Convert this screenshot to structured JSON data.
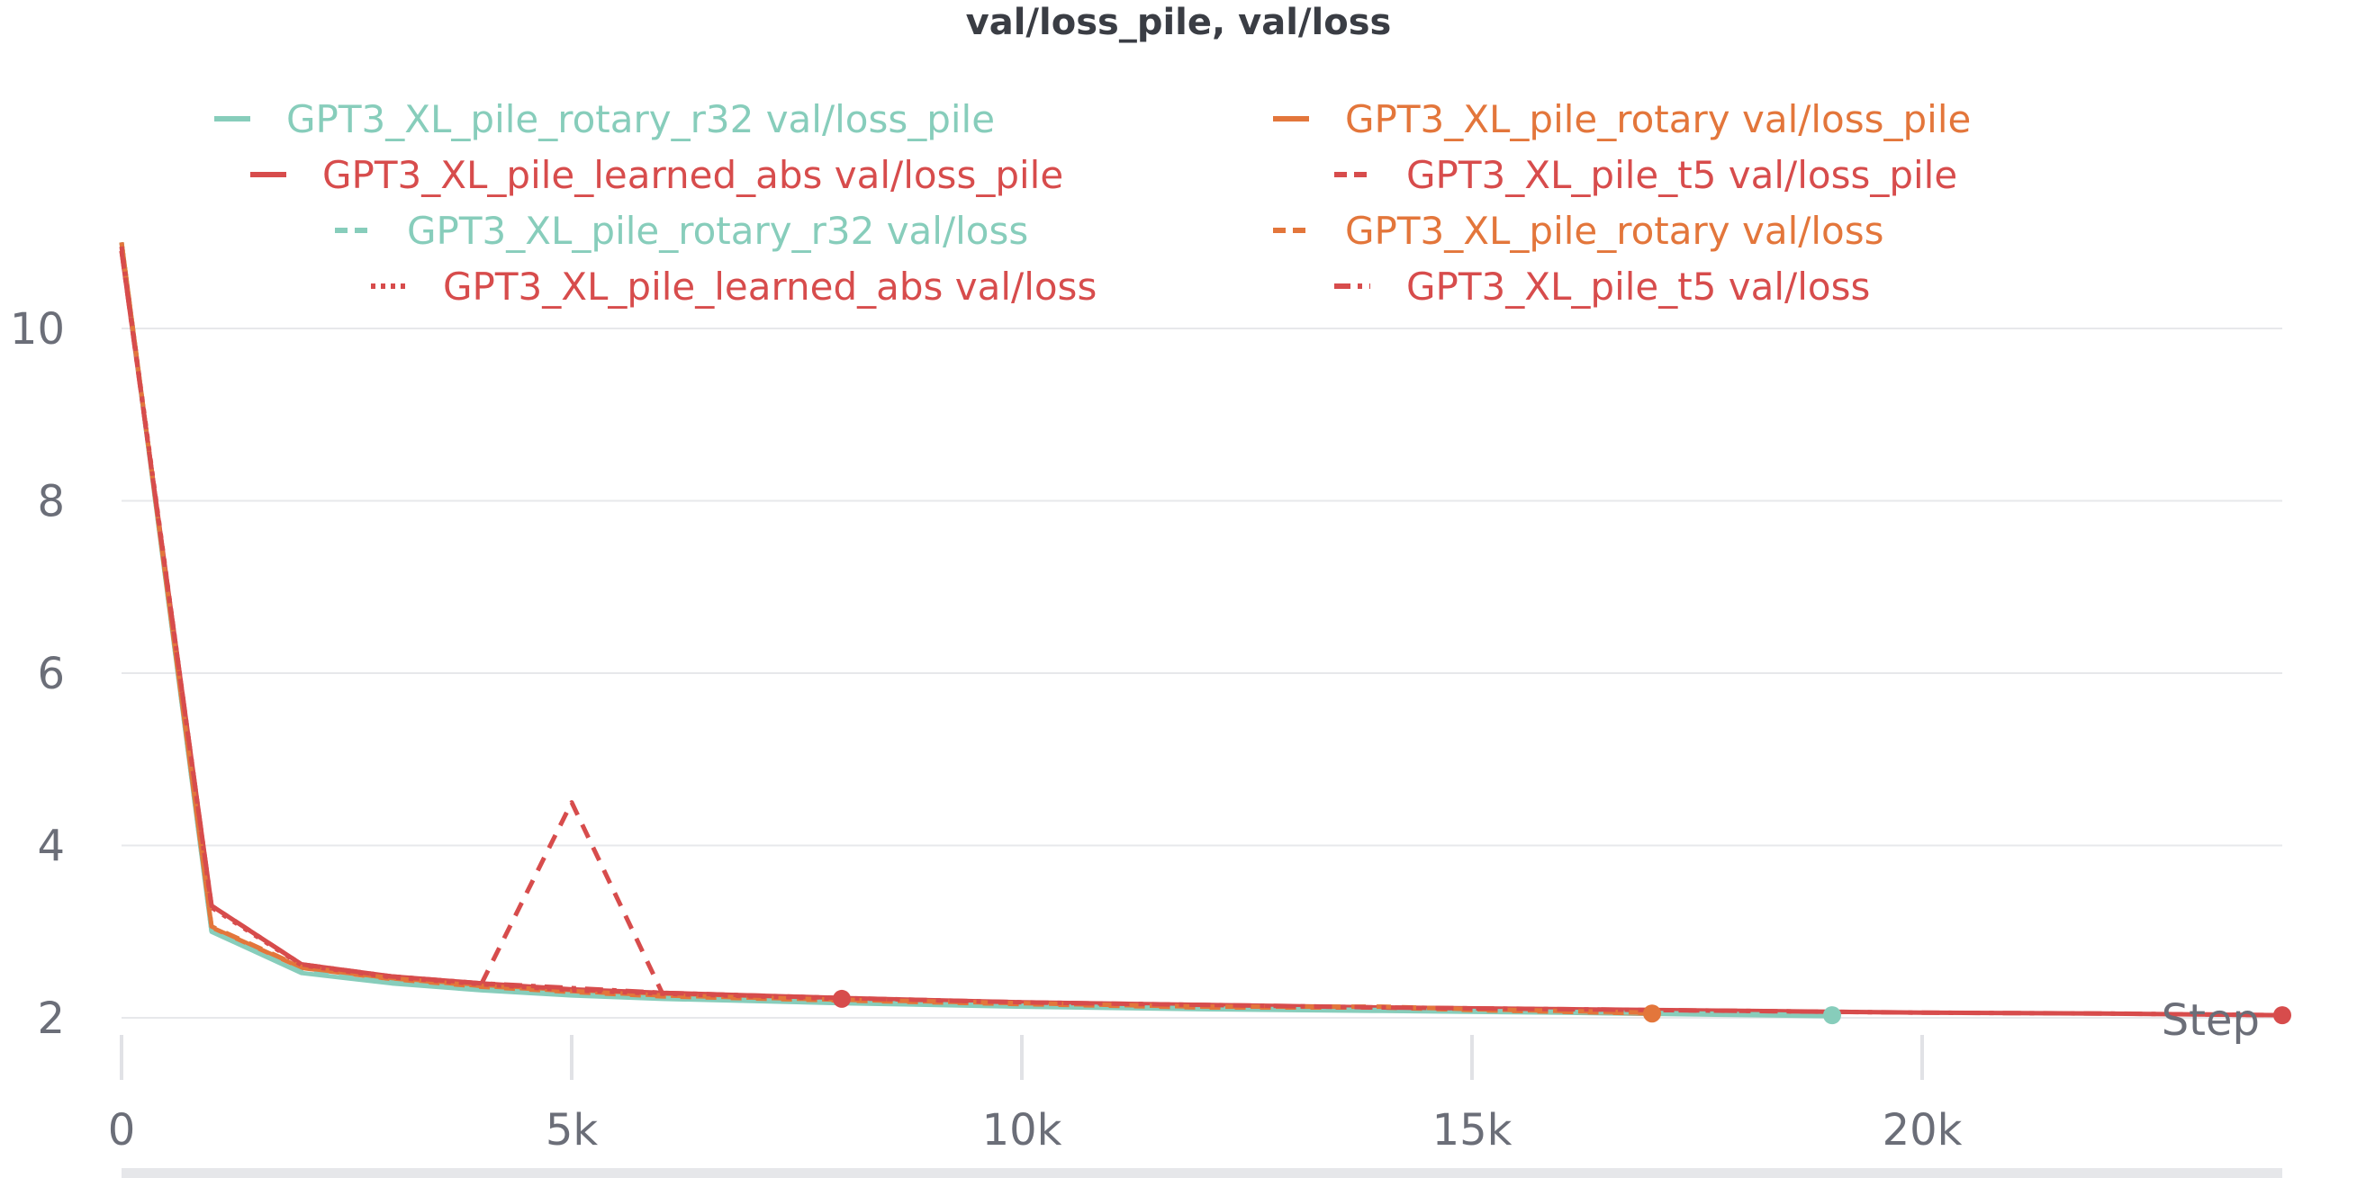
{
  "chart_data": {
    "type": "line",
    "title": "val/loss_pile, val/loss",
    "xlabel": "Step",
    "ylabel": "",
    "xlim": [
      0,
      24000
    ],
    "ylim": [
      1.3,
      11
    ],
    "x_ticks": [
      {
        "value": 0,
        "label": "0"
      },
      {
        "value": 5000,
        "label": "5k"
      },
      {
        "value": 10000,
        "label": "10k"
      },
      {
        "value": 15000,
        "label": "15k"
      },
      {
        "value": 20000,
        "label": "20k"
      }
    ],
    "y_ticks": [
      {
        "value": 2,
        "label": "2"
      },
      {
        "value": 4,
        "label": "4"
      },
      {
        "value": 6,
        "label": "6"
      },
      {
        "value": 8,
        "label": "8"
      },
      {
        "value": 10,
        "label": "10"
      }
    ],
    "grid": true,
    "legend_position": "top",
    "series": [
      {
        "name": "GPT3_XL_pile_rotary_r32 val/loss_pile",
        "color": "#87cdbb",
        "dash": "solid",
        "x": [
          0,
          1000,
          2000,
          3000,
          4000,
          5000,
          6000,
          8000,
          10000,
          12000,
          14000,
          16000,
          19000
        ],
        "y": [
          11,
          3.0,
          2.52,
          2.4,
          2.32,
          2.26,
          2.22,
          2.17,
          2.13,
          2.1,
          2.08,
          2.06,
          2.02
        ],
        "end_marker": false
      },
      {
        "name": "GPT3_XL_pile_rotary val/loss_pile",
        "color": "#e3763b",
        "dash": "solid",
        "x": [
          0,
          1000,
          2000,
          3000,
          4000,
          5000,
          6000,
          8000,
          10000,
          12000,
          14000,
          15000,
          17000
        ],
        "y": [
          11,
          3.05,
          2.58,
          2.45,
          2.36,
          2.3,
          2.25,
          2.2,
          2.16,
          2.12,
          2.12,
          2.09,
          2.05
        ],
        "end_marker": true
      },
      {
        "name": "GPT3_XL_pile_learned_abs val/loss_pile",
        "color": "#d74c4c",
        "dash": "solid",
        "x": [
          0,
          1000,
          2000,
          3000,
          4000,
          5000,
          6000,
          8000,
          10000,
          12000,
          14000,
          16000,
          18000,
          20000,
          22000,
          24000
        ],
        "y": [
          10.9,
          3.3,
          2.62,
          2.48,
          2.4,
          2.33,
          2.29,
          2.23,
          2.18,
          2.15,
          2.12,
          2.1,
          2.08,
          2.06,
          2.05,
          2.03
        ],
        "end_marker": true
      },
      {
        "name": "GPT3_XL_pile_t5 val/loss_pile",
        "color": "#d74c4c",
        "dash": "dashed",
        "x": [
          4000,
          5000,
          6000
        ],
        "y": [
          2.4,
          4.5,
          2.3
        ],
        "end_marker": false
      },
      {
        "name": "GPT3_XL_pile_rotary_r32 val/loss",
        "color": "#87cdbb",
        "dash": "dashed",
        "x": [
          0,
          1000,
          2000,
          3000,
          4000,
          5000,
          6000,
          8000,
          10000,
          12000,
          14000,
          16000,
          19000
        ],
        "y": [
          11,
          3.0,
          2.53,
          2.41,
          2.33,
          2.27,
          2.23,
          2.18,
          2.14,
          2.11,
          2.09,
          2.07,
          2.03
        ],
        "end_marker": true
      },
      {
        "name": "GPT3_XL_pile_rotary val/loss",
        "color": "#e3763b",
        "dash": "dashed",
        "x": [
          0,
          1000,
          2000,
          3000,
          4000,
          5000,
          6000,
          8000,
          10000,
          12000,
          14000,
          15000,
          17000
        ],
        "y": [
          11,
          3.06,
          2.59,
          2.46,
          2.37,
          2.31,
          2.26,
          2.21,
          2.17,
          2.13,
          2.13,
          2.1,
          2.06
        ],
        "end_marker": false
      },
      {
        "name": "GPT3_XL_pile_learned_abs val/loss",
        "color": "#d74c4c",
        "dash": "dotted",
        "x": [
          0,
          1000,
          2000,
          3000,
          4000,
          5000,
          6000,
          8000
        ],
        "y": [
          10.95,
          3.28,
          2.61,
          2.47,
          2.39,
          2.32,
          2.28,
          2.22
        ],
        "end_marker": true
      },
      {
        "name": "GPT3_XL_pile_t5 val/loss",
        "color": "#d74c4c",
        "dash": "dashdot",
        "x": [
          0,
          1000,
          2000,
          3000,
          4000,
          6000,
          8000,
          10000,
          12000,
          14000,
          16000,
          18000,
          20000,
          22000,
          24000
        ],
        "y": [
          10.9,
          3.3,
          2.62,
          2.48,
          2.4,
          2.29,
          2.23,
          2.18,
          2.15,
          2.12,
          2.1,
          2.08,
          2.06,
          2.05,
          2.03
        ],
        "end_marker": false
      }
    ]
  }
}
